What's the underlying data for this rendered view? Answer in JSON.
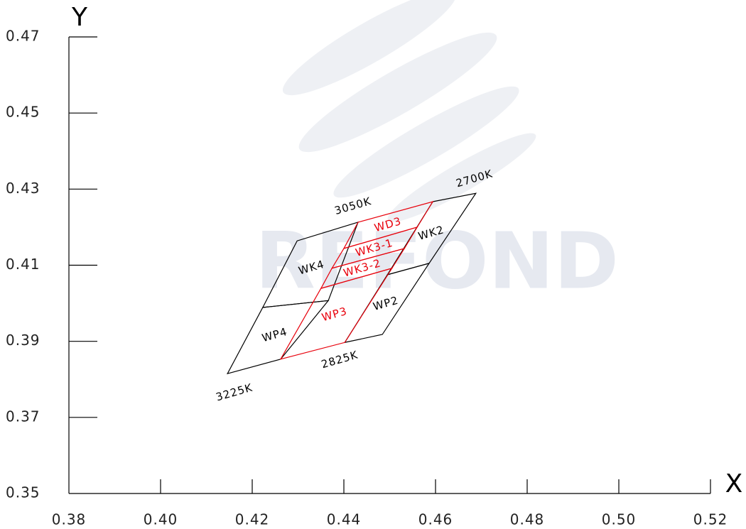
{
  "chart_data": {
    "type": "polygon",
    "watermark": "REFOND",
    "x_label": "X",
    "y_label": "Y",
    "xlim": [
      0.38,
      0.52
    ],
    "ylim": [
      0.35,
      0.47
    ],
    "xticks": [
      0.38,
      {
        "value": 0.4,
        "label": "0.40"
      },
      0.42,
      0.44,
      0.46,
      0.48,
      {
        "value": 0.5,
        "label": "0.50"
      },
      0.52
    ],
    "yticks": [
      0.35,
      0.37,
      0.39,
      0.41,
      0.43,
      0.45,
      0.47
    ],
    "regions": [
      {
        "name": "WK4",
        "color": "#000000",
        "x": [
          0.4223,
          0.4298,
          0.4431,
          0.4366
        ],
        "y": [
          0.3989,
          0.4164,
          0.4213,
          0.4007
        ]
      },
      {
        "name": "WP4",
        "color": "#000000",
        "x": [
          0.4146,
          0.4223,
          0.4366,
          0.4262
        ],
        "y": [
          0.3815,
          0.3989,
          0.4007,
          0.3853
        ]
      },
      {
        "name": "WK2",
        "color": "#000000",
        "x": [
          0.4594,
          0.4688,
          0.4586,
          0.4495
        ],
        "y": [
          0.4267,
          0.4289,
          0.4105,
          0.4075
        ]
      },
      {
        "name": "WP2",
        "color": "#000000",
        "x": [
          0.4402,
          0.4484,
          0.4586,
          0.4495
        ],
        "y": [
          0.3897,
          0.3918,
          0.4105,
          0.4075
        ]
      },
      {
        "name": "WP3",
        "color": "#e8000b",
        "x": [
          0.4262,
          0.4402,
          0.4505,
          0.435
        ],
        "y": [
          0.3853,
          0.3897,
          0.4092,
          0.4039
        ]
      },
      {
        "name": "WK3-2",
        "color": "#e8000b",
        "x": [
          0.435,
          0.4505,
          0.4532,
          0.4374
        ],
        "y": [
          0.4039,
          0.4092,
          0.4144,
          0.4092
        ]
      },
      {
        "name": "WK3-1",
        "color": "#e8000b",
        "x": [
          0.4374,
          0.4532,
          0.456,
          0.44
        ],
        "y": [
          0.4092,
          0.4144,
          0.42,
          0.4144
        ]
      },
      {
        "name": "WD3",
        "color": "#e8000b",
        "x": [
          0.44,
          0.456,
          0.4594,
          0.4431
        ],
        "y": [
          0.4144,
          0.42,
          0.4267,
          0.4213
        ]
      }
    ],
    "annotations": [
      {
        "text": "3050K",
        "x": 0.442,
        "y": 0.4255
      },
      {
        "text": "2700K",
        "x": 0.4685,
        "y": 0.4327
      },
      {
        "text": "2825K",
        "x": 0.4391,
        "y": 0.3851
      },
      {
        "text": "3225K",
        "x": 0.4161,
        "y": 0.3765
      }
    ]
  }
}
